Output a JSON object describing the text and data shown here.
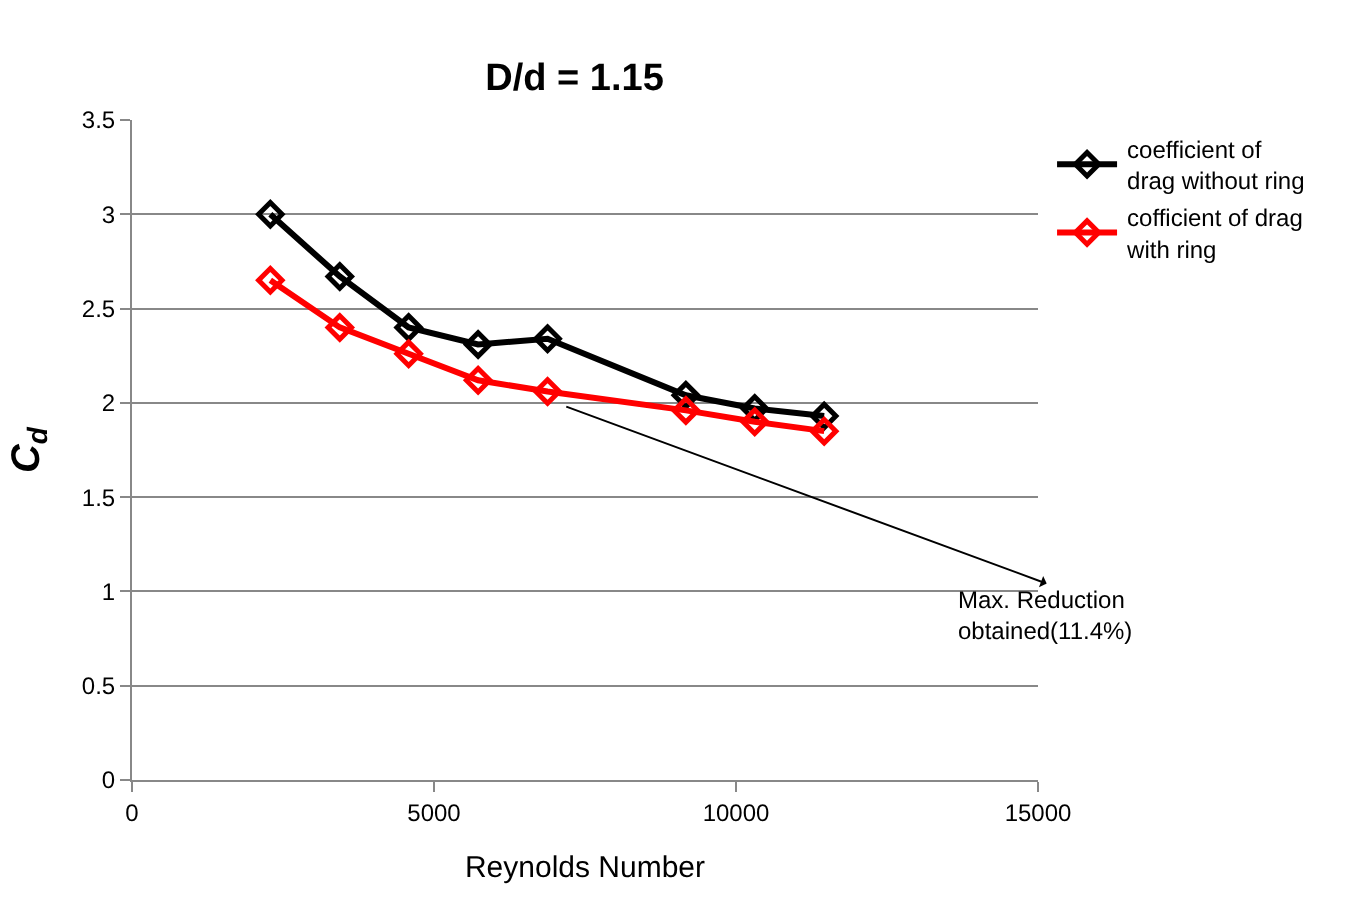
{
  "chart_data": {
    "type": "line",
    "title": "D/d = 1.15",
    "xlabel": "Reynolds Number",
    "ylabel": "C$_{d}$",
    "x": [
      2290,
      3440,
      4580,
      5730,
      6880,
      9170,
      10310,
      11460
    ],
    "series": [
      {
        "name": "coefficient of drag without ring",
        "color": "#000000",
        "values": [
          3.0,
          2.67,
          2.4,
          2.31,
          2.34,
          2.04,
          1.97,
          1.93
        ]
      },
      {
        "name": "cofficient of drag with ring",
        "color": "#ff0000",
        "values": [
          2.65,
          2.4,
          2.26,
          2.12,
          2.06,
          1.96,
          1.9,
          1.85
        ]
      }
    ],
    "annotations": [
      {
        "text": "Max. Reduction obtained(11.4%)",
        "x": 7190,
        "y": 1.98
      }
    ],
    "xlim": [
      0,
      15000
    ],
    "xticks": [
      0,
      5000,
      10000,
      15000
    ],
    "ylim": [
      0,
      3.5
    ],
    "yticks": [
      0,
      0.5,
      1,
      1.5,
      2,
      2.5,
      3,
      3.5
    ],
    "grid": "y",
    "legend": "right",
    "marker": "diamond",
    "line_style": "solid"
  }
}
